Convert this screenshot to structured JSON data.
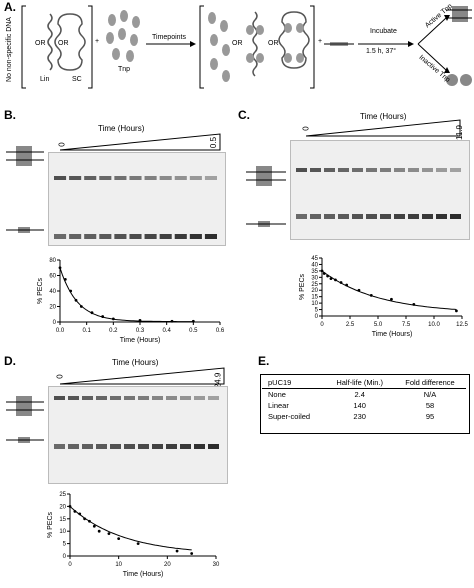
{
  "panel_a": {
    "label": "A.",
    "left_rotated": "No non-specific DNA",
    "or1": "OR",
    "or2": "OR",
    "lin_label": "Lin",
    "sc_label": "SC",
    "plus1": "+",
    "tnp_label": "Tnp",
    "timepoints_label": "Timepoints",
    "or3": "OR",
    "or4": "OR",
    "plus2": "+",
    "incubate_label": "Incubate",
    "incubate_cond": "1.5 h, 37°",
    "active_label": "Active Tnp",
    "inactive_label": "Inactive Tnp"
  },
  "panel_b": {
    "label": "B.",
    "gel_title": "Time (Hours)",
    "start": "0",
    "end": "0.5"
  },
  "panel_c": {
    "label": "C.",
    "gel_title": "Time (Hours)",
    "start": "0",
    "end": "11.9"
  },
  "panel_d": {
    "label": "D.",
    "gel_title": "Time (Hours)",
    "start": "0",
    "end": "24.9"
  },
  "panel_e": {
    "label": "E.",
    "headers": [
      "pUC19",
      "Half-life (Min.)",
      "Fold difference"
    ],
    "rows": [
      [
        "None",
        "2.4",
        "N/A"
      ],
      [
        "Linear",
        "140",
        "58"
      ],
      [
        "Super-coiled",
        "230",
        "95"
      ]
    ]
  },
  "chart_data": [
    {
      "type": "scatter",
      "panel": "B",
      "xlabel": "Time (Hours)",
      "ylabel": "% PECs",
      "xlim": [
        0,
        0.6
      ],
      "ylim": [
        0,
        80
      ],
      "xticks": [
        "0.0",
        "0.1",
        "0.2",
        "0.3",
        "0.4",
        "0.5",
        "0.6"
      ],
      "yticks": [
        "0",
        "20",
        "40",
        "60",
        "80"
      ],
      "x": [
        0,
        0.02,
        0.04,
        0.06,
        0.08,
        0.12,
        0.16,
        0.2,
        0.3,
        0.42,
        0.5
      ],
      "y": [
        70,
        55,
        40,
        28,
        20,
        12,
        7,
        4,
        2,
        1,
        1
      ],
      "fit": "exponential decay"
    },
    {
      "type": "scatter",
      "panel": "C",
      "xlabel": "Time (Hours)",
      "ylabel": "% PECs",
      "xlim": [
        0,
        12.5
      ],
      "ylim": [
        0,
        45
      ],
      "xticks": [
        "0",
        "2.5",
        "5.0",
        "7.5",
        "10.0",
        "12.5"
      ],
      "yticks": [
        "0",
        "5",
        "10",
        "15",
        "20",
        "25",
        "30",
        "35",
        "40",
        "45"
      ],
      "x": [
        0,
        0.2,
        0.5,
        0.8,
        1.2,
        1.7,
        2.2,
        3.3,
        4.4,
        6.2,
        8.2,
        12.0
      ],
      "y": [
        35,
        33,
        31,
        29,
        28,
        26,
        24,
        20,
        16,
        13,
        9,
        4
      ],
      "fit": "exponential decay"
    },
    {
      "type": "scatter",
      "panel": "D",
      "xlabel": "Time (Hours)",
      "ylabel": "% PECs",
      "xlim": [
        0,
        30
      ],
      "ylim": [
        0,
        25
      ],
      "xticks": [
        "0",
        "10",
        "20",
        "30"
      ],
      "yticks": [
        "0",
        "5",
        "10",
        "15",
        "20",
        "25"
      ],
      "x": [
        0,
        1,
        2,
        3,
        4,
        5,
        6,
        8,
        10,
        14,
        22,
        25
      ],
      "y": [
        20,
        18,
        17,
        15,
        14,
        12,
        10,
        9,
        7,
        5,
        2,
        1
      ],
      "fit": "exponential decay"
    }
  ]
}
